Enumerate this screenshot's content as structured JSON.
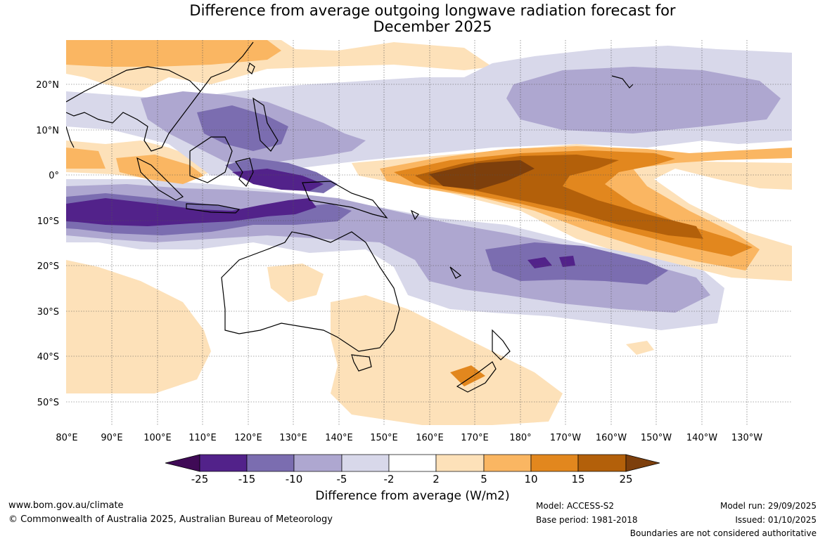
{
  "title_line1": "Difference from average outgoing longwave radiation forecast for",
  "title_line2": "December 2025",
  "lat_labels": [
    "20°N",
    "10°N",
    "0°",
    "10°S",
    "20°S",
    "30°S",
    "40°S",
    "50°S"
  ],
  "lon_labels": [
    "80°E",
    "90°E",
    "100°E",
    "110°E",
    "120°E",
    "130°E",
    "140°E",
    "150°E",
    "160°E",
    "170°E",
    "180°",
    "170°W",
    "160°W",
    "150°W",
    "140°W",
    "130°W"
  ],
  "legend": {
    "title": "Difference from average (W/m2)",
    "ticks": [
      "-25",
      "-15",
      "-10",
      "-5",
      "-2",
      "2",
      "5",
      "10",
      "15",
      "25"
    ],
    "colors": [
      "#3f0a56",
      "#52228a",
      "#7b6db0",
      "#aea7d0",
      "#d8d8ea",
      "#ffffff",
      "#fde1b9",
      "#fab662",
      "#e2871e",
      "#b3600a",
      "#7d3f0c"
    ]
  },
  "footer": {
    "website": "www.bom.gov.au/climate",
    "copyright": "© Commonwealth of Australia 2025, Australian Bureau of Meteorology",
    "model": "Model: ACCESS-S2",
    "base_period": "Base period: 1981-2018",
    "model_run": "Model run: 29/09/2025",
    "issued": "Issued: 01/10/2025",
    "disclaimer": "Boundaries are not considered authoritative"
  }
}
